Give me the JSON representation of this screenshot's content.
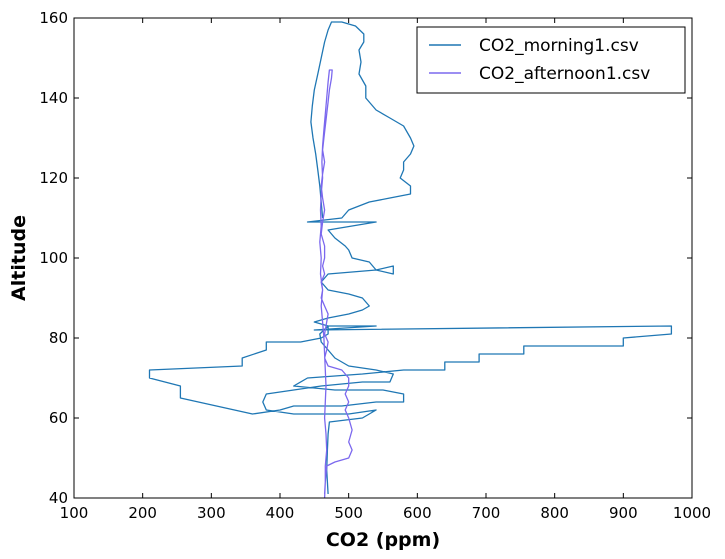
{
  "chart_data": {
    "type": "line",
    "title": "",
    "xlabel": "CO2 (ppm)",
    "ylabel": "Altitude",
    "xlim": [
      100,
      1000
    ],
    "ylim": [
      40,
      160
    ],
    "xticks": [
      100,
      200,
      300,
      400,
      500,
      600,
      700,
      800,
      900,
      1000
    ],
    "yticks": [
      40,
      60,
      80,
      100,
      120,
      140,
      160
    ],
    "grid": false,
    "legend_position": "top-right",
    "series": [
      {
        "name": "CO2_morning1.csv",
        "color": "#1f77b4",
        "points": [
          [
            470,
            41
          ],
          [
            468,
            47
          ],
          [
            469,
            52
          ],
          [
            470,
            56
          ],
          [
            472,
            59
          ],
          [
            520,
            60
          ],
          [
            540,
            62
          ],
          [
            500,
            61
          ],
          [
            420,
            61
          ],
          [
            380,
            62
          ],
          [
            375,
            64
          ],
          [
            380,
            66
          ],
          [
            420,
            67
          ],
          [
            460,
            68
          ],
          [
            520,
            69
          ],
          [
            560,
            69
          ],
          [
            565,
            71
          ],
          [
            540,
            72
          ],
          [
            500,
            73
          ],
          [
            480,
            75
          ],
          [
            470,
            77
          ],
          [
            460,
            79
          ],
          [
            458,
            81
          ],
          [
            470,
            83
          ],
          [
            540,
            83
          ],
          [
            450,
            82
          ],
          [
            970,
            83
          ],
          [
            970,
            81
          ],
          [
            900,
            80
          ],
          [
            900,
            78
          ],
          [
            755,
            78
          ],
          [
            755,
            76
          ],
          [
            690,
            76
          ],
          [
            690,
            74
          ],
          [
            640,
            74
          ],
          [
            640,
            72
          ],
          [
            580,
            72
          ],
          [
            520,
            71
          ],
          [
            440,
            70
          ],
          [
            420,
            68
          ],
          [
            480,
            67
          ],
          [
            550,
            67
          ],
          [
            580,
            66
          ],
          [
            580,
            64
          ],
          [
            540,
            64
          ],
          [
            490,
            63
          ],
          [
            420,
            63
          ],
          [
            400,
            62
          ],
          [
            360,
            61
          ],
          [
            255,
            65
          ],
          [
            255,
            68
          ],
          [
            210,
            70
          ],
          [
            210,
            72
          ],
          [
            345,
            73
          ],
          [
            345,
            75
          ],
          [
            380,
            77
          ],
          [
            380,
            79
          ],
          [
            430,
            79
          ],
          [
            460,
            80
          ],
          [
            470,
            81
          ],
          [
            470,
            83
          ],
          [
            450,
            84
          ],
          [
            470,
            85
          ],
          [
            500,
            86
          ],
          [
            520,
            87
          ],
          [
            530,
            88
          ],
          [
            520,
            90
          ],
          [
            500,
            91
          ],
          [
            470,
            92
          ],
          [
            460,
            94
          ],
          [
            470,
            96
          ],
          [
            540,
            97
          ],
          [
            565,
            98
          ],
          [
            565,
            96
          ],
          [
            540,
            97
          ],
          [
            530,
            99
          ],
          [
            505,
            100
          ],
          [
            500,
            102
          ],
          [
            495,
            103
          ],
          [
            480,
            105
          ],
          [
            470,
            107
          ],
          [
            540,
            109
          ],
          [
            440,
            109
          ],
          [
            490,
            110
          ],
          [
            500,
            112
          ],
          [
            530,
            114
          ],
          [
            560,
            115
          ],
          [
            590,
            116
          ],
          [
            590,
            118
          ],
          [
            575,
            120
          ],
          [
            580,
            122
          ],
          [
            580,
            124
          ],
          [
            590,
            126
          ],
          [
            595,
            128
          ],
          [
            590,
            130
          ],
          [
            580,
            133
          ],
          [
            560,
            135
          ],
          [
            540,
            137
          ],
          [
            525,
            140
          ],
          [
            525,
            143
          ],
          [
            515,
            146
          ],
          [
            518,
            149
          ],
          [
            515,
            152
          ],
          [
            522,
            154
          ],
          [
            522,
            156
          ],
          [
            510,
            158
          ],
          [
            490,
            159
          ],
          [
            475,
            159
          ],
          [
            470,
            157
          ],
          [
            465,
            154
          ],
          [
            460,
            150
          ],
          [
            455,
            146
          ],
          [
            450,
            142
          ],
          [
            447,
            138
          ],
          [
            445,
            134
          ],
          [
            448,
            130
          ],
          [
            452,
            126
          ],
          [
            455,
            122
          ],
          [
            458,
            118
          ],
          [
            460,
            114
          ],
          [
            462,
            110
          ]
        ]
      },
      {
        "name": "CO2_afternoon1.csv",
        "color": "#7b68ee",
        "points": [
          [
            465,
            40
          ],
          [
            466,
            44
          ],
          [
            468,
            48
          ],
          [
            480,
            49
          ],
          [
            500,
            50
          ],
          [
            505,
            52
          ],
          [
            500,
            54
          ],
          [
            505,
            57
          ],
          [
            500,
            60
          ],
          [
            495,
            62
          ],
          [
            500,
            64
          ],
          [
            495,
            66
          ],
          [
            500,
            68
          ],
          [
            500,
            70
          ],
          [
            490,
            72
          ],
          [
            470,
            73
          ],
          [
            465,
            75
          ],
          [
            468,
            77
          ],
          [
            470,
            79
          ],
          [
            465,
            81
          ],
          [
            468,
            84
          ],
          [
            470,
            86
          ],
          [
            465,
            88
          ],
          [
            460,
            90
          ],
          [
            462,
            92
          ],
          [
            460,
            94
          ],
          [
            465,
            96
          ],
          [
            462,
            98
          ],
          [
            465,
            100
          ],
          [
            465,
            103
          ],
          [
            460,
            106
          ],
          [
            462,
            109
          ],
          [
            465,
            112
          ],
          [
            462,
            115
          ],
          [
            460,
            118
          ],
          [
            462,
            121
          ],
          [
            465,
            124
          ],
          [
            462,
            127
          ],
          [
            464,
            130
          ],
          [
            466,
            133
          ],
          [
            468,
            136
          ],
          [
            470,
            139
          ],
          [
            472,
            142
          ],
          [
            475,
            145
          ],
          [
            476,
            147
          ],
          [
            472,
            147
          ],
          [
            470,
            144
          ],
          [
            468,
            140
          ],
          [
            466,
            136
          ],
          [
            464,
            132
          ],
          [
            462,
            128
          ],
          [
            461,
            124
          ],
          [
            462,
            120
          ],
          [
            460,
            116
          ],
          [
            459,
            112
          ],
          [
            460,
            108
          ],
          [
            458,
            104
          ],
          [
            460,
            100
          ],
          [
            459,
            96
          ],
          [
            462,
            92
          ],
          [
            460,
            88
          ],
          [
            462,
            84
          ],
          [
            464,
            80
          ],
          [
            465,
            76
          ],
          [
            466,
            72
          ],
          [
            467,
            68
          ],
          [
            466,
            64
          ],
          [
            465,
            60
          ],
          [
            467,
            56
          ],
          [
            468,
            52
          ],
          [
            466,
            48
          ],
          [
            466,
            44
          ],
          [
            465,
            41
          ]
        ]
      }
    ]
  }
}
